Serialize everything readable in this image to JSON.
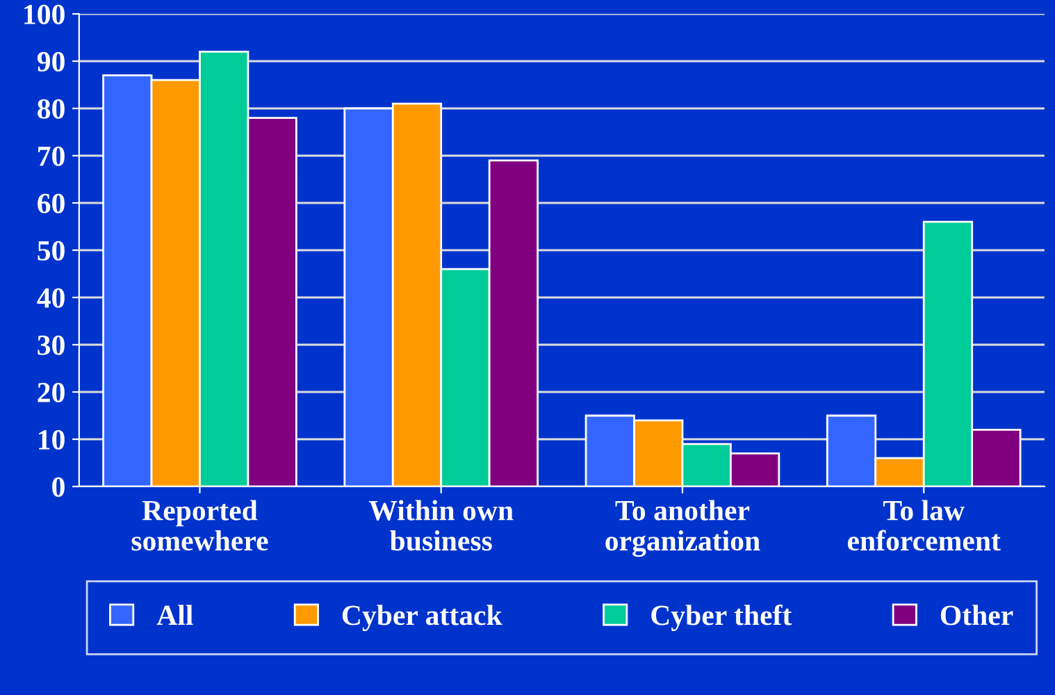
{
  "chart_data": {
    "type": "bar",
    "categories": [
      "Reported\nsomewhere",
      "Within own\nbusiness",
      "To another\norganization",
      "To law\nenforcement"
    ],
    "series": [
      {
        "name": "All",
        "color": "#3366ff",
        "values": [
          87,
          80,
          15,
          15
        ]
      },
      {
        "name": "Cyber attack",
        "color": "#ff9900",
        "values": [
          86,
          81,
          14,
          6
        ]
      },
      {
        "name": "Cyber theft",
        "color": "#00cc99",
        "values": [
          92,
          46,
          9,
          56
        ]
      },
      {
        "name": "Other",
        "color": "#800080",
        "values": [
          78,
          69,
          7,
          12
        ]
      }
    ],
    "ylim": [
      0,
      100
    ],
    "yticks": [
      0,
      10,
      20,
      30,
      40,
      50,
      60,
      70,
      80,
      90,
      100
    ],
    "grid": "y",
    "legend": "bottom"
  }
}
